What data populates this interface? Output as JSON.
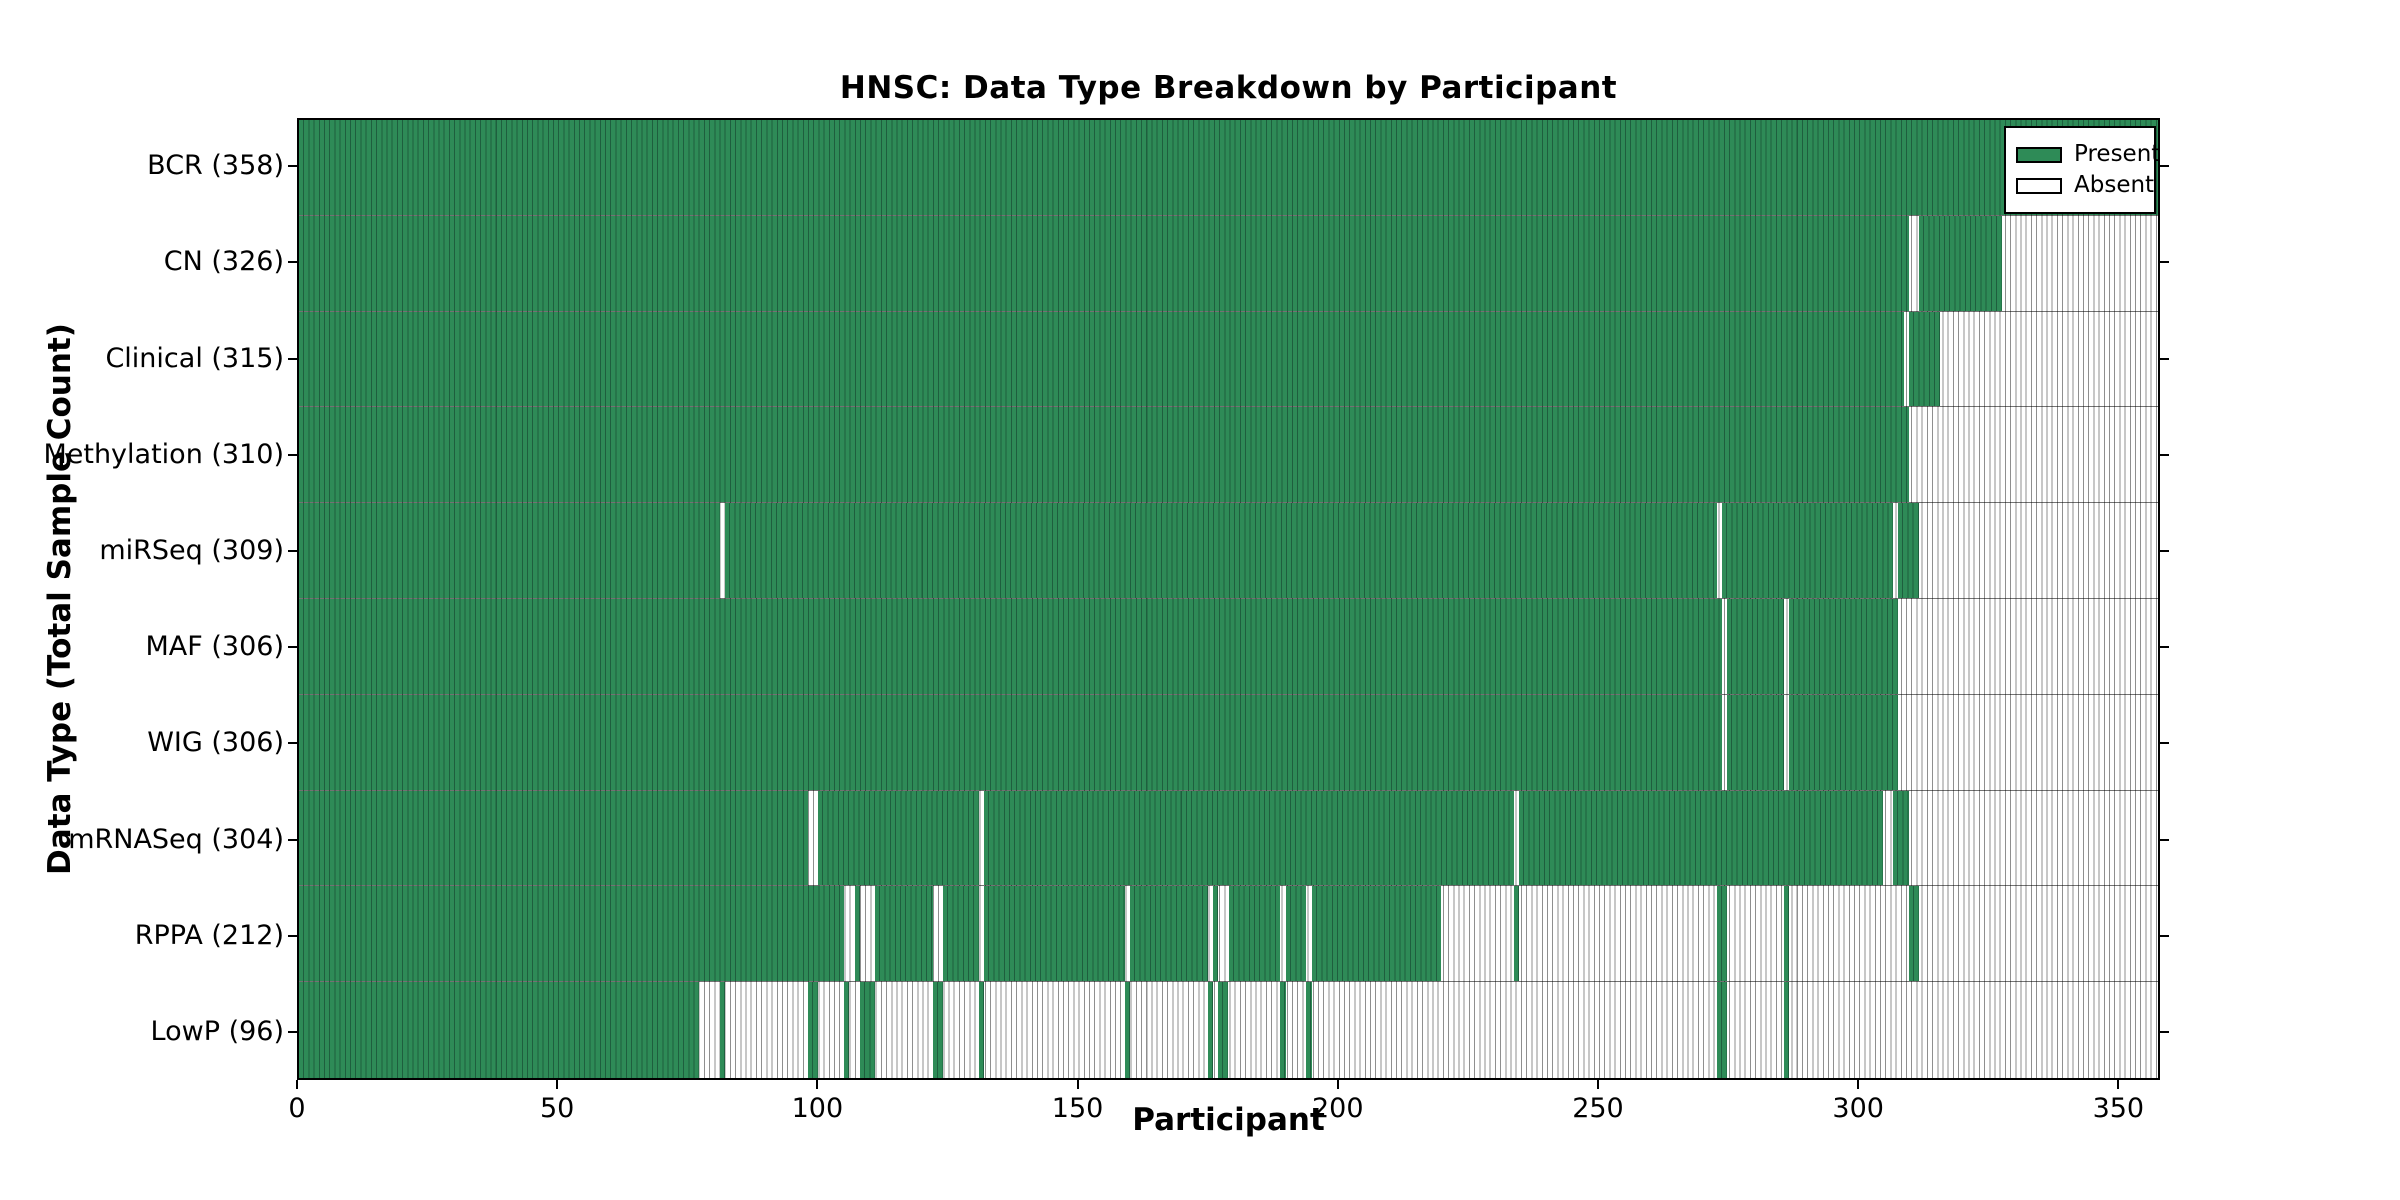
{
  "title": "HNSC: Data Type Breakdown by Participant",
  "colors": {
    "present": "#2e8b57",
    "present_edge": "#1e5f3e",
    "absent": "#ffffff",
    "absent_edge": "#8f8f8f",
    "spine": "#000000"
  },
  "chart_data": {
    "type": "heatmap",
    "title": "HNSC: Data Type Breakdown by Participant",
    "xlabel": "Participant",
    "ylabel": "Data Type (Total Sample Count)",
    "grid": false,
    "legend_position": "upper right",
    "legend": [
      {
        "label": "Present",
        "color": "#2e8b57"
      },
      {
        "label": "Absent",
        "color": "#ffffff"
      }
    ],
    "x_axis": {
      "label": "Participant",
      "min": 0,
      "max": 358,
      "ticks": [
        0,
        50,
        100,
        150,
        200,
        250,
        300,
        350
      ]
    },
    "rows": [
      {
        "label": "BCR (358)",
        "data_type": "BCR",
        "total_samples": 358,
        "present_segments": [
          [
            0,
            357
          ]
        ]
      },
      {
        "label": "CN (326)",
        "data_type": "CN",
        "total_samples": 326,
        "present_segments": [
          [
            0,
            309
          ],
          [
            312,
            327
          ]
        ]
      },
      {
        "label": "Clinical (315)",
        "data_type": "Clinical",
        "total_samples": 315,
        "present_segments": [
          [
            0,
            308
          ],
          [
            310,
            315
          ]
        ]
      },
      {
        "label": "Methylation (310)",
        "data_type": "Methylation",
        "total_samples": 310,
        "present_segments": [
          [
            0,
            309
          ]
        ]
      },
      {
        "label": "miRSeq (309)",
        "data_type": "miRSeq",
        "total_samples": 309,
        "present_segments": [
          [
            0,
            80
          ],
          [
            82,
            272
          ],
          [
            274,
            306
          ],
          [
            308,
            311
          ]
        ]
      },
      {
        "label": "MAF (306)",
        "data_type": "MAF",
        "total_samples": 306,
        "present_segments": [
          [
            0,
            273
          ],
          [
            275,
            285
          ],
          [
            287,
            307
          ]
        ]
      },
      {
        "label": "WIG (306)",
        "data_type": "WIG",
        "total_samples": 306,
        "present_segments": [
          [
            0,
            273
          ],
          [
            275,
            285
          ],
          [
            287,
            307
          ]
        ]
      },
      {
        "label": "mRNASeq (304)",
        "data_type": "mRNASeq",
        "total_samples": 304,
        "present_segments": [
          [
            0,
            97
          ],
          [
            100,
            130
          ],
          [
            132,
            233
          ],
          [
            235,
            304
          ],
          [
            307,
            309
          ]
        ]
      },
      {
        "label": "RPPA (212)",
        "data_type": "RPPA",
        "total_samples": 212,
        "present_segments": [
          [
            0,
            104
          ],
          [
            107,
            107
          ],
          [
            111,
            121
          ],
          [
            124,
            130
          ],
          [
            132,
            158
          ],
          [
            160,
            174
          ],
          [
            176,
            176
          ],
          [
            179,
            188
          ],
          [
            190,
            193
          ],
          [
            195,
            219
          ],
          [
            234,
            234
          ],
          [
            273,
            274
          ],
          [
            286,
            286
          ],
          [
            310,
            311
          ]
        ]
      },
      {
        "label": "LowP (96)",
        "data_type": "LowP",
        "total_samples": 96,
        "present_segments": [
          [
            0,
            76
          ],
          [
            81,
            81
          ],
          [
            98,
            99
          ],
          [
            105,
            105
          ],
          [
            108,
            110
          ],
          [
            122,
            123
          ],
          [
            131,
            131
          ],
          [
            159,
            159
          ],
          [
            175,
            175
          ],
          [
            177,
            178
          ],
          [
            189,
            189
          ],
          [
            194,
            194
          ],
          [
            273,
            274
          ],
          [
            286,
            286
          ]
        ]
      }
    ]
  }
}
